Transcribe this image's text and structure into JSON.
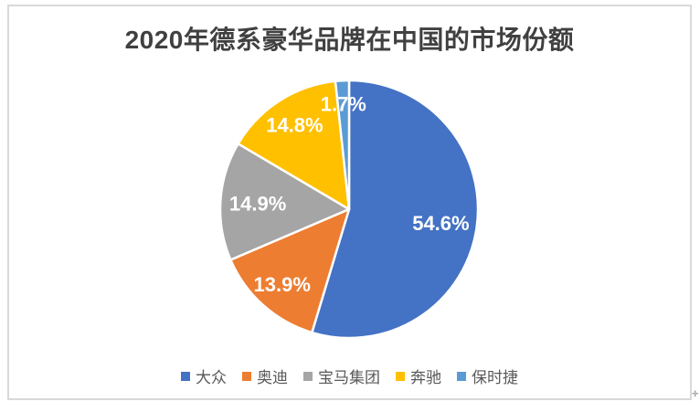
{
  "frame": {
    "background": "#ffffff",
    "border_color": "#d9d9d9"
  },
  "chart_data": {
    "type": "pie",
    "title": "2020年德系豪华品牌在中国的市场份额",
    "categories": [
      "大众",
      "奥迪",
      "宝马集团",
      "奔驰",
      "保时捷"
    ],
    "values": [
      54.6,
      13.9,
      14.9,
      14.8,
      1.7
    ],
    "percent_labels": [
      "54.6%",
      "13.9%",
      "14.9%",
      "14.8%",
      "1.7%"
    ],
    "colors": [
      "#4472C4",
      "#ED7D31",
      "#A5A5A5",
      "#FFC000",
      "#5B9BD5"
    ],
    "start_angle_deg": 0,
    "direction": "clockwise",
    "slice_border_color": "#ffffff",
    "label_color": "#ffffff",
    "title_color": "#404040",
    "legend_text_color": "#595959",
    "legend_position": "bottom"
  },
  "decoration": {
    "cursor_mark": "✛"
  }
}
